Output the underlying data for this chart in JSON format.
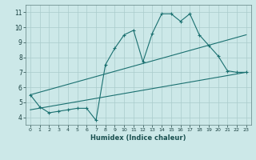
{
  "xlabel": "Humidex (Indice chaleur)",
  "ylabel": "",
  "bg_color": "#cce8e8",
  "grid_color": "#aacccc",
  "line_color": "#1a7070",
  "xlim": [
    -0.5,
    23.5
  ],
  "ylim": [
    3.5,
    11.5
  ],
  "xticks": [
    0,
    1,
    2,
    3,
    4,
    5,
    6,
    7,
    8,
    9,
    10,
    11,
    12,
    13,
    14,
    15,
    16,
    17,
    18,
    19,
    20,
    21,
    22,
    23
  ],
  "yticks": [
    4,
    5,
    6,
    7,
    8,
    9,
    10,
    11
  ],
  "line1_x": [
    0,
    1,
    2,
    3,
    4,
    5,
    6,
    7,
    8,
    9,
    10,
    11,
    12,
    13,
    14,
    15,
    16,
    17,
    18,
    19,
    20,
    21,
    22,
    23
  ],
  "line1_y": [
    5.5,
    4.7,
    4.3,
    4.4,
    4.5,
    4.6,
    4.6,
    3.8,
    7.5,
    8.6,
    9.5,
    9.8,
    7.7,
    9.6,
    10.9,
    10.9,
    10.4,
    10.9,
    9.5,
    8.8,
    8.1,
    7.1,
    7.0,
    7.0
  ],
  "line2_x": [
    0,
    23
  ],
  "line2_y": [
    4.5,
    7.0
  ],
  "line3_x": [
    0,
    23
  ],
  "line3_y": [
    5.5,
    9.5
  ]
}
